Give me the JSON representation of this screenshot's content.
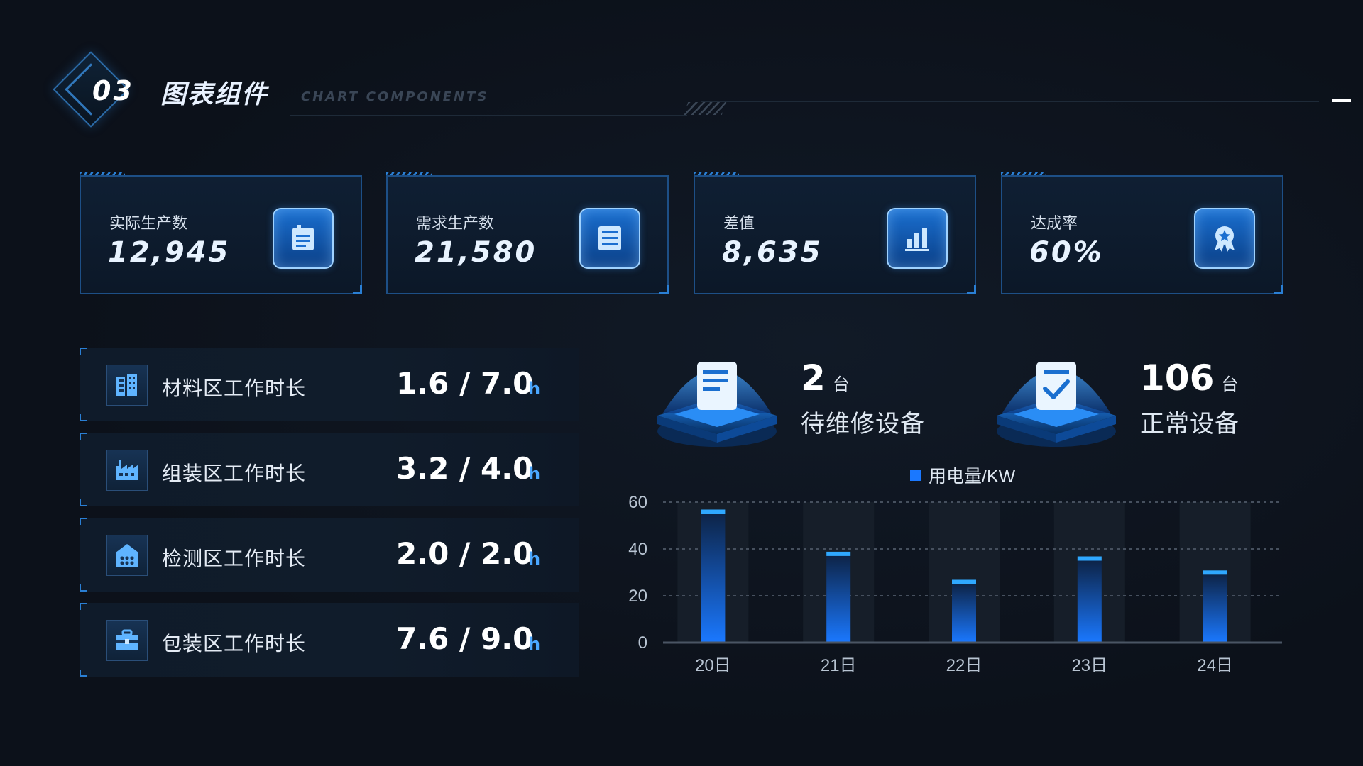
{
  "header": {
    "section_number": "03",
    "title": "图表组件",
    "subtitle": "CHART COMPONENTS"
  },
  "kpis": [
    {
      "label": "实际生产数",
      "value": "12,945",
      "icon": "clipboard-icon"
    },
    {
      "label": "需求生产数",
      "value": "21,580",
      "icon": "document-list-icon"
    },
    {
      "label": "差值",
      "value": "8,635",
      "icon": "bar-chart-icon"
    },
    {
      "label": "达成率",
      "value": "60%",
      "icon": "award-badge-icon"
    }
  ],
  "work_areas": [
    {
      "label": "材料区工作时长",
      "value": "1.6 / 7.0",
      "unit": "h",
      "icon": "building-icon"
    },
    {
      "label": "组装区工作时长",
      "value": "3.2 / 4.0",
      "unit": "h",
      "icon": "factory-icon"
    },
    {
      "label": "检测区工作时长",
      "value": "2.0 / 2.0",
      "unit": "h",
      "icon": "warehouse-icon"
    },
    {
      "label": "包装区工作时长",
      "value": "7.6 / 9.0",
      "unit": "h",
      "icon": "toolbox-icon"
    }
  ],
  "equipment": [
    {
      "count": "2",
      "unit": "台",
      "label": "待维修设备",
      "icon": "document-icon"
    },
    {
      "count": "106",
      "unit": "台",
      "label": "正常设备",
      "icon": "checklist-icon"
    }
  ],
  "colors": {
    "accent": "#2a7fd4",
    "bar_top": "#2fa8ff",
    "bar_bottom": "#1a70e0",
    "background": "#0c111a"
  },
  "chart_data": {
    "type": "bar",
    "categories": [
      "20日",
      "21日",
      "22日",
      "23日",
      "24日"
    ],
    "series": [
      {
        "name": "用电量/KW",
        "values": [
          55,
          37,
          25,
          35,
          29
        ]
      }
    ],
    "yticks": [
      0,
      20,
      40,
      60
    ],
    "ylim": [
      0,
      60
    ],
    "grid": true,
    "legend": "top-center"
  }
}
